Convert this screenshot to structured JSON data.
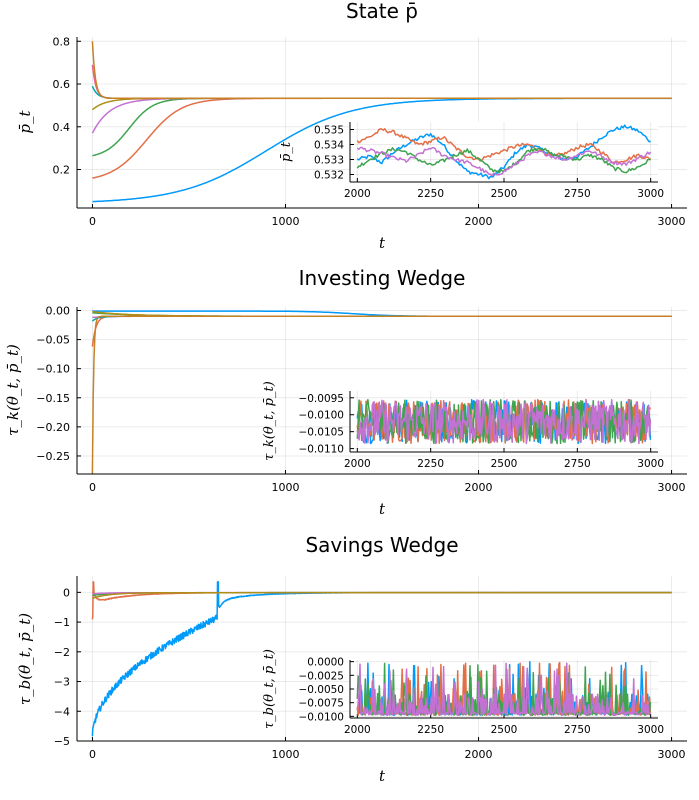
{
  "chart_data": [
    {
      "type": "line",
      "title": "State p̄",
      "xlabel": "t",
      "ylabel": "p̄_t",
      "xlim": [
        -80,
        3080
      ],
      "ylim": [
        0.02,
        0.82
      ],
      "xticks": [
        0,
        1000,
        2000,
        3000
      ],
      "xtick_labels": [
        "0",
        "1000",
        "2000",
        "3000"
      ],
      "yticks": [
        0.2,
        0.4,
        0.6,
        0.8
      ],
      "ytick_labels": [
        "0.2",
        "0.4",
        "0.6",
        "0.8"
      ],
      "grid": true,
      "legend": "none",
      "series": [
        {
          "color": "#009AFA",
          "start": 0.05,
          "steady": 0.533,
          "shape": "logistic",
          "mid": 900,
          "rate": 0.0045
        },
        {
          "color": "#E36F47",
          "start": 0.16,
          "steady": 0.533,
          "shape": "logistic",
          "mid": 280,
          "rate": 0.011
        },
        {
          "color": "#3EA44E",
          "start": 0.265,
          "steady": 0.533,
          "shape": "logistic",
          "mid": 190,
          "rate": 0.016
        },
        {
          "color": "#C371D2",
          "start": 0.37,
          "steady": 0.533,
          "shape": "exp",
          "tau": 90
        },
        {
          "color": "#AC8E18",
          "start": 0.48,
          "steady": 0.533,
          "shape": "exp",
          "tau": 70
        },
        {
          "color": "#00A9AD",
          "start": 0.59,
          "steady": 0.533,
          "shape": "exp",
          "tau": 25
        },
        {
          "color": "#ED5E93",
          "start": 0.69,
          "steady": 0.533,
          "shape": "exp",
          "tau": 18
        },
        {
          "color": "#C68225",
          "start": 0.8,
          "steady": 0.533,
          "shape": "exp",
          "tau": 15
        }
      ],
      "inset": {
        "xlim": [
          1975,
          3025
        ],
        "ylim": [
          0.5315,
          0.5355
        ],
        "xticks": [
          2000,
          2250,
          2500,
          2750,
          3000
        ],
        "xtick_labels": [
          "2000",
          "2250",
          "2500",
          "2750",
          "3000"
        ],
        "yticks": [
          0.532,
          0.533,
          0.534,
          0.535
        ],
        "ytick_labels": [
          "0.532",
          "0.533",
          "0.534",
          "0.535"
        ],
        "ylabel": "p̄_t",
        "series": [
          {
            "color": "#009AFA",
            "values": [
              0.533,
              0.5332,
              0.5328,
              0.5335,
              0.534,
              0.5344,
              0.5347,
              0.534,
              0.533,
              0.5322,
              0.532,
              0.5318,
              0.5325,
              0.5335,
              0.534,
              0.5337,
              0.5333,
              0.533,
              0.5332,
              0.5338,
              0.5345,
              0.535,
              0.5352,
              0.5349,
              0.5342
            ]
          },
          {
            "color": "#E36F47",
            "values": [
              0.5342,
              0.5345,
              0.535,
              0.5348,
              0.5344,
              0.534,
              0.5342,
              0.5345,
              0.5338,
              0.5332,
              0.533,
              0.5333,
              0.5336,
              0.5339,
              0.534,
              0.5336,
              0.5332,
              0.5334,
              0.5338,
              0.534,
              0.5335,
              0.5328,
              0.533,
              0.5333,
              0.533
            ]
          },
          {
            "color": "#3EA44E",
            "values": [
              0.5325,
              0.533,
              0.5334,
              0.5337,
              0.5335,
              0.533,
              0.5326,
              0.5329,
              0.5333,
              0.5336,
              0.533,
              0.5323,
              0.5322,
              0.5328,
              0.5336,
              0.5338,
              0.5333,
              0.5332,
              0.533,
              0.5333,
              0.533,
              0.5324,
              0.5322,
              0.5325,
              0.533
            ]
          },
          {
            "color": "#C371D2",
            "values": [
              0.5338,
              0.5336,
              0.5334,
              0.5331,
              0.5329,
              0.5333,
              0.5338,
              0.5333,
              0.533,
              0.5328,
              0.5324,
              0.5319,
              0.5322,
              0.5327,
              0.5333,
              0.5335,
              0.5332,
              0.533,
              0.5333,
              0.5336,
              0.5332,
              0.5328,
              0.5327,
              0.5331,
              0.5335
            ]
          }
        ]
      }
    },
    {
      "type": "line",
      "title": "Investing Wedge",
      "xlabel": "t",
      "ylabel": "τ_k(θ_t, p̄_t)",
      "xlim": [
        -80,
        3080
      ],
      "ylim": [
        -0.281,
        0.006
      ],
      "xticks": [
        0,
        1000,
        2000,
        3000
      ],
      "xtick_labels": [
        "0",
        "1000",
        "2000",
        "3000"
      ],
      "yticks": [
        0.0,
        -0.05,
        -0.1,
        -0.15,
        -0.2,
        -0.25
      ],
      "ytick_labels": [
        "0.00",
        "−0.05",
        "−0.10",
        "−0.15",
        "−0.20",
        "−0.25"
      ],
      "grid": true,
      "legend": "none",
      "series": [
        {
          "color": "#009AFA",
          "start": -0.001,
          "steady": -0.01,
          "shape": "logistic",
          "mid": 1350,
          "rate": 0.009
        },
        {
          "color": "#E36F47",
          "start": -0.062,
          "steady": -0.01,
          "shape": "exp",
          "tau": 18
        },
        {
          "color": "#3EA44E",
          "start": -0.004,
          "steady": -0.01,
          "shape": "exp",
          "tau": 250
        },
        {
          "color": "#C371D2",
          "start": -0.012,
          "steady": -0.01,
          "shape": "exp",
          "tau": 60
        },
        {
          "color": "#AC8E18",
          "start": -0.002,
          "steady": -0.01,
          "shape": "exp",
          "tau": 200
        },
        {
          "color": "#00A9AD",
          "start": -0.018,
          "steady": -0.01,
          "shape": "exp",
          "tau": 30
        },
        {
          "color": "#C68225",
          "start": -0.28,
          "steady": -0.01,
          "shape": "exp",
          "tau": 6
        }
      ],
      "inset": {
        "xlim": [
          1975,
          3025
        ],
        "ylim": [
          -0.0111,
          -0.0093
        ],
        "xticks": [
          2000,
          2250,
          2500,
          2750,
          3000
        ],
        "xtick_labels": [
          "2000",
          "2250",
          "2500",
          "2750",
          "3000"
        ],
        "yticks": [
          -0.0095,
          -0.01,
          -0.0105,
          -0.011
        ],
        "ytick_labels": [
          "−0.0095",
          "−0.0100",
          "−0.0105",
          "−0.0110"
        ],
        "ylabel": "τ_k(θ_t, p̄_t)",
        "noise": {
          "center": -0.0102,
          "amplitude": 0.00065
        },
        "series": [
          {
            "color": "#009AFA"
          },
          {
            "color": "#E36F47"
          },
          {
            "color": "#3EA44E"
          },
          {
            "color": "#C371D2"
          }
        ]
      }
    },
    {
      "type": "line",
      "title": "Savings Wedge",
      "xlabel": "t",
      "ylabel": "τ_b(θ_t, p̄_t)",
      "xlim": [
        -80,
        3080
      ],
      "ylim": [
        -5.0,
        0.55
      ],
      "xticks": [
        0,
        1000,
        2000,
        3000
      ],
      "xtick_labels": [
        "0",
        "1000",
        "2000",
        "3000"
      ],
      "yticks": [
        0,
        -1,
        -2,
        -3,
        -4,
        -5
      ],
      "ytick_labels": [
        "0",
        "−1",
        "−2",
        "−3",
        "−4",
        "−5"
      ],
      "grid": true,
      "legend": "none",
      "series": [
        {
          "color": "#009AFA",
          "shape": "spike-recovery",
          "start": -4.9,
          "pre_spike": -0.85,
          "spike_t": 650,
          "spike_peak": 0.35,
          "steady": -0.01
        },
        {
          "color": "#E36F47",
          "shape": "dip",
          "start": -0.85,
          "spike_peak": 0.35,
          "dip": -0.35,
          "steady": -0.01
        },
        {
          "color": "#3EA44E",
          "start": -0.1,
          "steady": -0.01,
          "shape": "exp",
          "tau": 120
        },
        {
          "color": "#C371D2",
          "start": -0.05,
          "steady": -0.01,
          "shape": "exp",
          "tau": 80
        },
        {
          "color": "#AC8E18",
          "start": -0.2,
          "steady": -0.01,
          "shape": "exp",
          "tau": 90
        }
      ],
      "inset": {
        "xlim": [
          1975,
          3025
        ],
        "ylim": [
          -0.0103,
          0.0003
        ],
        "xticks": [
          2000,
          2250,
          2500,
          2750,
          3000
        ],
        "xtick_labels": [
          "2000",
          "2250",
          "2500",
          "2750",
          "3000"
        ],
        "yticks": [
          0.0,
          -0.0025,
          -0.005,
          -0.0075,
          -0.01
        ],
        "ytick_labels": [
          "0.0000",
          "−0.0025",
          "−0.0050",
          "−0.0075",
          "−0.0100"
        ],
        "ylabel": "τ_b(θ_t, p̄_t)",
        "noise": {
          "floor": -0.0098,
          "spike_max": 0.0
        },
        "series": [
          {
            "color": "#009AFA"
          },
          {
            "color": "#E36F47"
          },
          {
            "color": "#3EA44E"
          },
          {
            "color": "#C371D2"
          }
        ]
      }
    }
  ]
}
